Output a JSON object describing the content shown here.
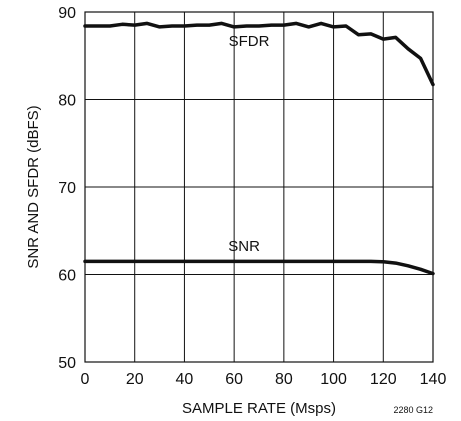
{
  "chart_data": {
    "type": "line",
    "xlabel": "SAMPLE RATE (Msps)",
    "ylabel": "SNR AND SFDR (dBFS)",
    "figure_code": "2280 G12",
    "xlim": [
      0,
      140
    ],
    "ylim": [
      50,
      90
    ],
    "x_ticks": [
      0,
      20,
      40,
      60,
      80,
      100,
      120,
      140
    ],
    "y_ticks": [
      50,
      60,
      70,
      80,
      90
    ],
    "x_tick_labels": [
      "0",
      "20",
      "40",
      "60",
      "80",
      "100",
      "120",
      "140"
    ],
    "y_tick_labels": [
      "50",
      "60",
      "70",
      "80",
      "90"
    ],
    "grid": true,
    "series": [
      {
        "name": "SFDR",
        "x": [
          0,
          5,
          10,
          15,
          20,
          25,
          30,
          35,
          40,
          45,
          50,
          55,
          60,
          65,
          70,
          75,
          80,
          85,
          90,
          95,
          100,
          105,
          110,
          115,
          120,
          125,
          130,
          135,
          140
        ],
        "y": [
          88.4,
          88.4,
          88.4,
          88.6,
          88.5,
          88.7,
          88.3,
          88.4,
          88.4,
          88.5,
          88.5,
          88.7,
          88.3,
          88.4,
          88.4,
          88.5,
          88.5,
          88.7,
          88.3,
          88.7,
          88.3,
          88.4,
          87.4,
          87.5,
          86.9,
          87.1,
          85.8,
          84.7,
          81.7
        ]
      },
      {
        "name": "SNR",
        "x": [
          0,
          20,
          40,
          60,
          80,
          100,
          110,
          115,
          120,
          125,
          130,
          135,
          140
        ],
        "y": [
          61.5,
          61.5,
          61.5,
          61.5,
          61.5,
          61.5,
          61.5,
          61.5,
          61.45,
          61.3,
          61.0,
          60.6,
          60.1
        ]
      }
    ]
  }
}
